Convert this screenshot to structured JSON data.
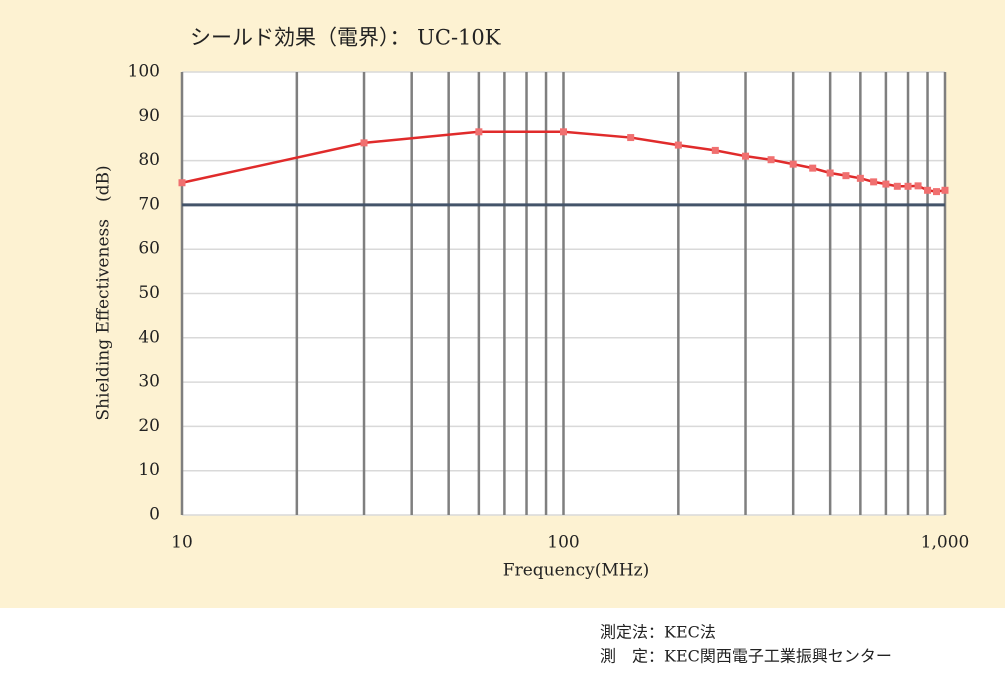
{
  "chart_data": {
    "type": "line",
    "title": "シールド効果（電界）： UC-10K",
    "xlabel": "Frequency(MHz)",
    "ylabel": "Shielding Effectiveness　(dB)",
    "x": [
      10,
      30,
      60,
      100,
      150,
      200,
      250,
      300,
      350,
      400,
      450,
      500,
      550,
      600,
      650,
      700,
      750,
      800,
      850,
      900,
      950,
      1000
    ],
    "series": [
      {
        "color": "#e02b2b",
        "marker_color": "#f07070",
        "values": [
          75,
          84,
          86.5,
          86.5,
          85.2,
          83.5,
          82.3,
          81,
          80.2,
          79.2,
          78.3,
          77.2,
          76.6,
          76,
          75.2,
          74.7,
          74.2,
          74.2,
          74.3,
          73.3,
          73,
          73.3
        ]
      }
    ],
    "xscale": "log",
    "xlim": [
      10,
      1000
    ],
    "xticks": [
      10,
      100,
      {
        "value": 1000,
        "label": "1,000"
      }
    ],
    "xgrid": [
      10,
      20,
      30,
      40,
      50,
      60,
      70,
      80,
      90,
      100,
      200,
      300,
      400,
      500,
      600,
      700,
      800,
      900,
      1000
    ],
    "ylim": [
      0,
      100
    ],
    "yticks": [
      0,
      10,
      20,
      30,
      40,
      50,
      60,
      70,
      80,
      90,
      100
    ],
    "grid": true,
    "reference_line": 70,
    "reference_color": "#44546a"
  },
  "notes": [
    "測定法：KEC法",
    "測　定：KEC関西電子工業振興センター"
  ]
}
